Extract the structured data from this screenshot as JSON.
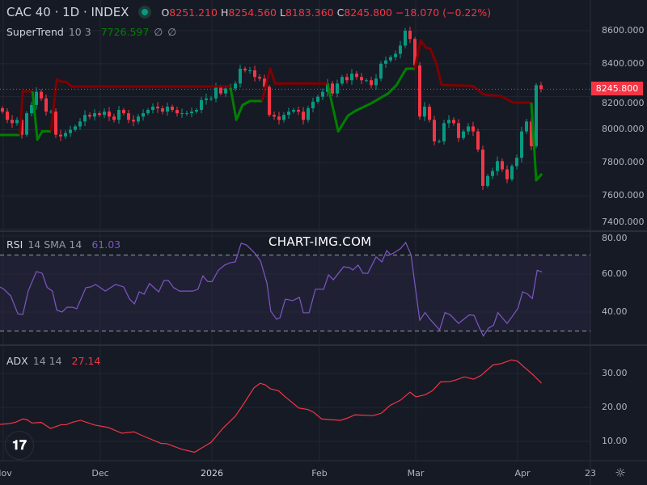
{
  "header": {
    "symbol": "CAC 40 · 1D · INDEX",
    "open_label": "O",
    "open": "8251.210",
    "high_label": "H",
    "high": "8254.560",
    "low_label": "L",
    "low": "8183.360",
    "close_label": "C",
    "close": "8245.800",
    "change": "−18.070 (−0.22%)",
    "market_status_color": "#089981"
  },
  "supertrend": {
    "name": "SuperTrend",
    "params": "10 3",
    "value": "7726.597",
    "extra1": "∅",
    "extra2": "∅"
  },
  "rsi": {
    "name": "RSI",
    "params": "14 SMA 14",
    "value": "61.03"
  },
  "adx": {
    "name": "ADX",
    "params": "14 14",
    "value": "27.14"
  },
  "watermark": "CHART-IMG.COM",
  "current_price_tag": "8245.800",
  "price_axis": [
    "8600.000",
    "8400.000",
    "8200.000",
    "8000.000",
    "7800.000",
    "7600.000",
    "7400.000"
  ],
  "rsi_axis": [
    "80.00",
    "60.00",
    "40.00"
  ],
  "adx_axis": [
    "30.00",
    "20.00",
    "10.00"
  ],
  "time_axis": [
    "Nov",
    "Dec",
    "2026",
    "Feb",
    "Mar",
    "Apr",
    "23"
  ],
  "logo": "TV",
  "colors": {
    "up": "#089981",
    "down": "#f23645",
    "st_up": "#008000",
    "st_down": "#800000",
    "rsi": "#7e57c2",
    "adx": "#f23645"
  },
  "chart_data": [
    {
      "type": "candlestick",
      "title": "CAC 40 · 1D · INDEX",
      "ylim": [
        7400,
        8650
      ],
      "closes": [
        8110,
        8060,
        8040,
        8060,
        7970,
        8100,
        8150,
        8230,
        8190,
        8110,
        8110,
        7970,
        7960,
        7980,
        8000,
        8020,
        8050,
        8090,
        8080,
        8100,
        8090,
        8110,
        8080,
        8060,
        8120,
        8100,
        8060,
        8050,
        8080,
        8100,
        8120,
        8140,
        8130,
        8110,
        8140,
        8120,
        8100,
        8100,
        8100,
        8110,
        8120,
        8180,
        8190,
        8190,
        8260,
        8220,
        8250,
        8250,
        8280,
        8370,
        8360,
        8360,
        8320,
        8310,
        8260,
        8090,
        8080,
        8060,
        8090,
        8110,
        8120,
        8110,
        8060,
        8130,
        8170,
        8200,
        8230,
        8280,
        8220,
        8280,
        8320,
        8300,
        8340,
        8320,
        8300,
        8300,
        8270,
        8310,
        8400,
        8420,
        8440,
        8460,
        8510,
        8600,
        8550,
        8390,
        8080,
        8140,
        8060,
        7930,
        7930,
        8040,
        8060,
        8040,
        7950,
        7990,
        8020,
        7990,
        7880,
        7660,
        7720,
        7750,
        7810,
        7760,
        7700,
        7780,
        7830,
        7990,
        8050,
        7900,
        8270,
        8245.8
      ],
      "supertrend_segments": [
        {
          "trend": "up",
          "points": [
            [
              -0.5,
              7968
            ],
            [
              3.6,
              7968
            ]
          ]
        },
        {
          "trend": "down",
          "points": [
            [
              3.6,
              7968
            ],
            [
              4.2,
              8233
            ],
            [
              6.2,
              8233
            ]
          ]
        },
        {
          "trend": "up",
          "points": [
            [
              6.2,
              8233
            ],
            [
              7.2,
              7940
            ],
            [
              8.2,
              7990
            ],
            [
              10,
              7990
            ]
          ]
        },
        {
          "trend": "down",
          "points": [
            [
              10,
              7990
            ],
            [
              11.2,
              8306
            ],
            [
              12.2,
              8290
            ],
            [
              13.2,
              8290
            ],
            [
              14.2,
              8262
            ],
            [
              47,
              8262
            ]
          ]
        },
        {
          "trend": "up",
          "points": [
            [
              47,
              8255
            ],
            [
              48.2,
              8060
            ],
            [
              49.5,
              8150
            ],
            [
              51,
              8174
            ],
            [
              53.5,
              8174
            ]
          ]
        },
        {
          "trend": "down",
          "points": [
            [
              53.5,
              8174
            ],
            [
              55.2,
              8370
            ],
            [
              56.2,
              8280
            ],
            [
              67,
              8280
            ]
          ]
        },
        {
          "trend": "up",
          "points": [
            [
              67,
              8280
            ],
            [
              69.2,
              7990
            ],
            [
              71.2,
              8085
            ],
            [
              72.8,
              8115
            ],
            [
              76,
              8160
            ],
            [
              79.5,
              8220
            ],
            [
              81.2,
              8270
            ],
            [
              83.2,
              8370
            ],
            [
              85,
              8370
            ]
          ]
        },
        {
          "trend": "down",
          "points": [
            [
              85,
              8370
            ],
            [
              86.2,
              8541
            ],
            [
              87.3,
              8497
            ],
            [
              88.2,
              8490
            ],
            [
              89.5,
              8394
            ],
            [
              90.5,
              8272
            ],
            [
              97,
              8265
            ],
            [
              99.2,
              8213
            ],
            [
              102.8,
              8203
            ],
            [
              105.3,
              8164
            ],
            [
              109,
              8164
            ]
          ]
        },
        {
          "trend": "up",
          "points": [
            [
              109,
              8164
            ],
            [
              110,
              7694
            ],
            [
              111.2,
              7733
            ]
          ]
        }
      ]
    },
    {
      "type": "line",
      "name": "RSI",
      "ylim": [
        25,
        82
      ],
      "bands": [
        30,
        70
      ],
      "points": [
        [
          -0.5,
          53.2
        ],
        [
          0.3,
          52
        ],
        [
          1.7,
          48.5
        ],
        [
          3.2,
          39
        ],
        [
          4.2,
          38.7
        ],
        [
          5.3,
          51
        ],
        [
          7,
          61.3
        ],
        [
          8.2,
          60.4
        ],
        [
          9.2,
          53
        ],
        [
          10.3,
          51
        ],
        [
          11.2,
          41
        ],
        [
          12.3,
          40
        ],
        [
          13.3,
          42.5
        ],
        [
          14.5,
          42.5
        ],
        [
          15.3,
          41.7
        ],
        [
          17.2,
          52.8
        ],
        [
          18.2,
          53.2
        ],
        [
          19.2,
          54.5
        ],
        [
          21.2,
          51
        ],
        [
          23.3,
          54.5
        ],
        [
          25,
          53.2
        ],
        [
          26.2,
          46.8
        ],
        [
          27.2,
          44.3
        ],
        [
          28.2,
          50.6
        ],
        [
          29.2,
          49.4
        ],
        [
          30.3,
          55
        ],
        [
          32.2,
          50.6
        ],
        [
          33.3,
          56.6
        ],
        [
          34.2,
          56.6
        ],
        [
          35.3,
          52.8
        ],
        [
          36.5,
          51
        ],
        [
          39.2,
          51
        ],
        [
          40.3,
          52
        ],
        [
          41.3,
          59
        ],
        [
          42.3,
          56
        ],
        [
          43.2,
          56
        ],
        [
          44.5,
          62
        ],
        [
          45.8,
          64.7
        ],
        [
          47,
          66
        ],
        [
          48,
          66.4
        ],
        [
          49.2,
          76.2
        ],
        [
          50.3,
          75.3
        ],
        [
          52,
          71
        ],
        [
          53.2,
          66.8
        ],
        [
          54.5,
          55.3
        ],
        [
          55.3,
          40.4
        ],
        [
          56.5,
          36.2
        ],
        [
          57.2,
          37
        ],
        [
          58.3,
          46.8
        ],
        [
          59.8,
          46
        ],
        [
          61.2,
          47.7
        ],
        [
          62,
          39.6
        ],
        [
          63.2,
          39.6
        ],
        [
          64.5,
          52
        ],
        [
          66.2,
          52
        ],
        [
          67.2,
          59.6
        ],
        [
          68.2,
          57
        ],
        [
          70.3,
          63.8
        ],
        [
          71.5,
          63.4
        ],
        [
          72.2,
          62.1
        ],
        [
          73.3,
          64.7
        ],
        [
          74.3,
          60.4
        ],
        [
          75.3,
          60.4
        ],
        [
          77,
          69
        ],
        [
          78.2,
          66.4
        ],
        [
          79.2,
          72.3
        ],
        [
          80,
          70.2
        ],
        [
          80.9,
          71.5
        ],
        [
          82,
          73.3
        ],
        [
          83.1,
          76.6
        ],
        [
          84.2,
          70.2
        ],
        [
          85,
          54.6
        ],
        [
          86,
          35.7
        ],
        [
          87.1,
          39.7
        ],
        [
          88.1,
          36.2
        ],
        [
          90.1,
          30.6
        ],
        [
          91.2,
          39.7
        ],
        [
          92.3,
          38.5
        ],
        [
          94,
          34
        ],
        [
          96.2,
          38.5
        ],
        [
          97.2,
          38.2
        ],
        [
          98.1,
          32.8
        ],
        [
          99.1,
          27.4
        ],
        [
          100.2,
          31.6
        ],
        [
          101.2,
          33
        ],
        [
          102.1,
          39.7
        ],
        [
          104,
          34
        ],
        [
          105.1,
          37.8
        ],
        [
          106.2,
          41.8
        ],
        [
          107.2,
          50.6
        ],
        [
          108.1,
          49.7
        ],
        [
          109.2,
          47.1
        ],
        [
          110.2,
          62
        ],
        [
          111.2,
          61.03
        ]
      ]
    },
    {
      "type": "line",
      "name": "ADX",
      "ylim": [
        5,
        37
      ],
      "points": [
        [
          -0.5,
          15
        ],
        [
          1.2,
          15.2
        ],
        [
          2.7,
          15.6
        ],
        [
          4.2,
          16.6
        ],
        [
          5,
          16.4
        ],
        [
          6.1,
          15.4
        ],
        [
          8,
          15.6
        ],
        [
          9.9,
          13.8
        ],
        [
          12.1,
          14.9
        ],
        [
          13.1,
          14.9
        ],
        [
          14.4,
          15.6
        ],
        [
          16.1,
          16.2
        ],
        [
          19,
          14.8
        ],
        [
          21.8,
          14.1
        ],
        [
          24.6,
          12.4
        ],
        [
          27.1,
          12.8
        ],
        [
          29.3,
          11.4
        ],
        [
          32.7,
          9.4
        ],
        [
          33.9,
          9.3
        ],
        [
          36.9,
          7.7
        ],
        [
          39.6,
          6.8
        ],
        [
          43,
          9.7
        ],
        [
          45.4,
          13.8
        ],
        [
          48,
          17.4
        ],
        [
          49.7,
          21
        ],
        [
          51.8,
          25.7
        ],
        [
          53.1,
          27.1
        ],
        [
          54.1,
          26.7
        ],
        [
          55.2,
          25.5
        ],
        [
          56.9,
          24.9
        ],
        [
          58.2,
          23.2
        ],
        [
          61.1,
          19.8
        ],
        [
          62.9,
          19.4
        ],
        [
          64.1,
          18.6
        ],
        [
          65.8,
          16.6
        ],
        [
          67.5,
          16.4
        ],
        [
          69.7,
          16.2
        ],
        [
          71.4,
          17
        ],
        [
          72.6,
          17.8
        ],
        [
          76.4,
          17.6
        ],
        [
          78.1,
          18.3
        ],
        [
          79.9,
          20.6
        ],
        [
          82,
          22.1
        ],
        [
          84,
          24.5
        ],
        [
          85.2,
          23.1
        ],
        [
          87.1,
          23.7
        ],
        [
          88.6,
          24.9
        ],
        [
          90.3,
          27.5
        ],
        [
          92.2,
          27.6
        ],
        [
          93.5,
          28.1
        ],
        [
          95.2,
          29
        ],
        [
          97.1,
          28.3
        ],
        [
          98.6,
          29.4
        ],
        [
          101.1,
          32.5
        ],
        [
          102.8,
          32.9
        ],
        [
          104.9,
          34
        ],
        [
          106.2,
          33.6
        ],
        [
          107.5,
          31.9
        ],
        [
          109.2,
          29.8
        ],
        [
          111.1,
          27.14
        ]
      ]
    }
  ]
}
